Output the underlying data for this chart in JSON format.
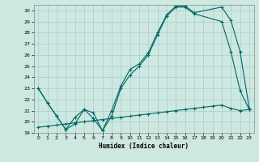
{
  "xlabel": "Humidex (Indice chaleur)",
  "background_color": "#cce8e0",
  "grid_color": "#aacccc",
  "line_color": "#006666",
  "xlim": [
    -0.5,
    23.5
  ],
  "ylim": [
    19,
    30.5
  ],
  "xticks": [
    0,
    1,
    2,
    3,
    4,
    5,
    6,
    7,
    8,
    9,
    10,
    11,
    12,
    13,
    14,
    15,
    16,
    17,
    18,
    19,
    20,
    21,
    22,
    23
  ],
  "yticks": [
    19,
    20,
    21,
    22,
    23,
    24,
    25,
    26,
    27,
    28,
    29,
    30
  ],
  "line1_x": [
    0,
    1,
    2,
    3,
    4,
    5,
    6,
    7,
    8,
    9,
    10,
    11,
    12,
    13,
    14,
    15,
    16,
    17,
    20,
    21,
    22,
    23
  ],
  "line1_y": [
    23,
    21.7,
    20.5,
    19.3,
    20.4,
    21.1,
    20.3,
    19.2,
    21.0,
    23.2,
    24.7,
    25.2,
    26.2,
    28.0,
    29.6,
    30.4,
    30.4,
    29.8,
    30.3,
    29.1,
    26.3,
    21.2
  ],
  "line2_x": [
    0,
    1,
    2,
    3,
    4,
    5,
    6,
    7,
    8,
    9,
    10,
    11,
    12,
    13,
    14,
    15,
    16,
    17,
    20,
    21,
    22,
    23
  ],
  "line2_y": [
    23,
    21.7,
    20.5,
    19.3,
    19.8,
    21.1,
    20.8,
    19.2,
    20.5,
    23.0,
    24.2,
    25.0,
    26.0,
    27.8,
    29.5,
    30.3,
    30.3,
    29.7,
    29.0,
    26.3,
    22.8,
    21.1
  ],
  "line3_x": [
    0,
    1,
    2,
    3,
    4,
    5,
    6,
    7,
    8,
    9,
    10,
    11,
    12,
    13,
    14,
    15,
    16,
    17,
    18,
    19,
    20,
    21,
    22,
    23
  ],
  "line3_y": [
    19.5,
    19.6,
    19.7,
    19.8,
    19.9,
    20.0,
    20.1,
    20.2,
    20.3,
    20.4,
    20.5,
    20.6,
    20.7,
    20.8,
    20.9,
    21.0,
    21.1,
    21.2,
    21.3,
    21.4,
    21.5,
    21.2,
    21.0,
    21.1
  ]
}
